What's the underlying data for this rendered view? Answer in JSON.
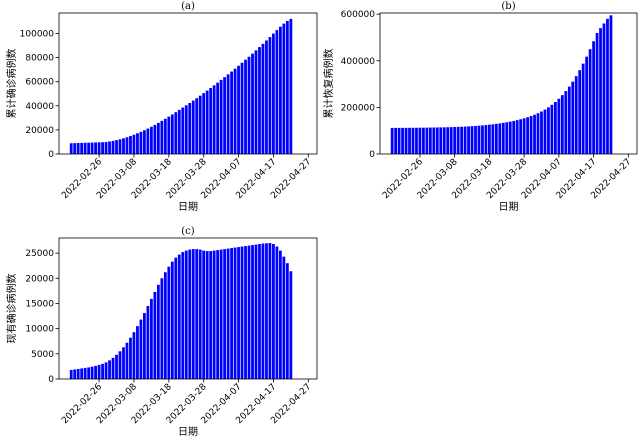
{
  "chart_data": [
    {
      "type": "bar",
      "panel": "(a)",
      "title": "(a)",
      "xlabel": "日期",
      "ylabel": "累计确诊病例数",
      "ylim": [
        0,
        117000
      ],
      "yticks": [
        "0",
        "20000",
        "40000",
        "60000",
        "80000",
        "100000"
      ],
      "ytick_values": [
        0,
        20000,
        40000,
        60000,
        80000,
        100000
      ],
      "xtick_labels": [
        "2022-02-26",
        "2022-03-08",
        "2022-03-18",
        "2022-03-28",
        "2022-04-07",
        "2022-04-17",
        "2022-04-27"
      ],
      "color": "#0000ff",
      "values": [
        8900,
        9000,
        9100,
        9200,
        9300,
        9400,
        9500,
        9600,
        9700,
        9800,
        10000,
        10400,
        10900,
        11500,
        12200,
        13000,
        13900,
        14900,
        16000,
        17200,
        18400,
        19700,
        21100,
        22600,
        24100,
        25800,
        27500,
        29200,
        31000,
        32800,
        34700,
        36600,
        38500,
        40400,
        42300,
        44300,
        46300,
        48400,
        50500,
        52600,
        54800,
        57000,
        59200,
        61500,
        63800,
        66100,
        68400,
        70800,
        73200,
        75700,
        78200,
        80700,
        83300,
        86000,
        88700,
        91400,
        94200,
        97000,
        99900,
        102800,
        105600,
        108200,
        110400,
        112100
      ]
    },
    {
      "type": "bar",
      "panel": "(b)",
      "title": "(b)",
      "xlabel": "日期",
      "ylabel": "累计恢复病例数",
      "ylim": [
        0,
        605000
      ],
      "yticks": [
        "0",
        "200000",
        "400000",
        "600000"
      ],
      "ytick_values": [
        0,
        200000,
        400000,
        600000
      ],
      "xtick_labels": [
        "2022-02-26",
        "2022-03-08",
        "2022-03-18",
        "2022-03-28",
        "2022-04-07",
        "2022-04-17",
        "2022-04-27"
      ],
      "color": "#0000ff",
      "values": [
        112000,
        112000,
        112100,
        112200,
        112300,
        112400,
        112500,
        112600,
        112800,
        113000,
        113200,
        113400,
        113600,
        113900,
        114200,
        114500,
        114900,
        115300,
        115800,
        116400,
        117000,
        117700,
        118500,
        119400,
        120400,
        121500,
        122700,
        124100,
        125700,
        127400,
        129300,
        131400,
        133700,
        136200,
        139000,
        142000,
        145400,
        149100,
        153200,
        157700,
        162800,
        168500,
        175000,
        182300,
        190700,
        200200,
        211000,
        223200,
        237000,
        252500,
        269800,
        289100,
        310500,
        334000,
        359700,
        387600,
        417700,
        449800,
        483800,
        519500,
        540000,
        560000,
        580000,
        595000
      ]
    },
    {
      "type": "bar",
      "panel": "(c)",
      "title": "(c)",
      "xlabel": "日期",
      "ylabel": "现有确诊病例数",
      "ylim": [
        0,
        28000
      ],
      "yticks": [
        "0",
        "5000",
        "10000",
        "15000",
        "20000",
        "25000"
      ],
      "ytick_values": [
        0,
        5000,
        10000,
        15000,
        20000,
        25000
      ],
      "xtick_labels": [
        "2022-02-26",
        "2022-03-08",
        "2022-03-18",
        "2022-03-28",
        "2022-04-07",
        "2022-04-17",
        "2022-04-27"
      ],
      "color": "#0000ff",
      "values": [
        1800,
        1900,
        2000,
        2100,
        2200,
        2300,
        2450,
        2600,
        2800,
        3000,
        3300,
        3700,
        4200,
        4800,
        5500,
        6300,
        7200,
        8200,
        9300,
        10500,
        11800,
        13100,
        14500,
        15900,
        17300,
        18700,
        20000,
        21200,
        22300,
        23300,
        24100,
        24700,
        25200,
        25500,
        25700,
        25800,
        25800,
        25700,
        25500,
        25400,
        25400,
        25500,
        25600,
        25700,
        25800,
        25900,
        26000,
        26100,
        26200,
        26300,
        26400,
        26500,
        26600,
        26700,
        26800,
        26900,
        26950,
        27000,
        26800,
        26300,
        25500,
        24300,
        23000,
        21400
      ]
    }
  ]
}
